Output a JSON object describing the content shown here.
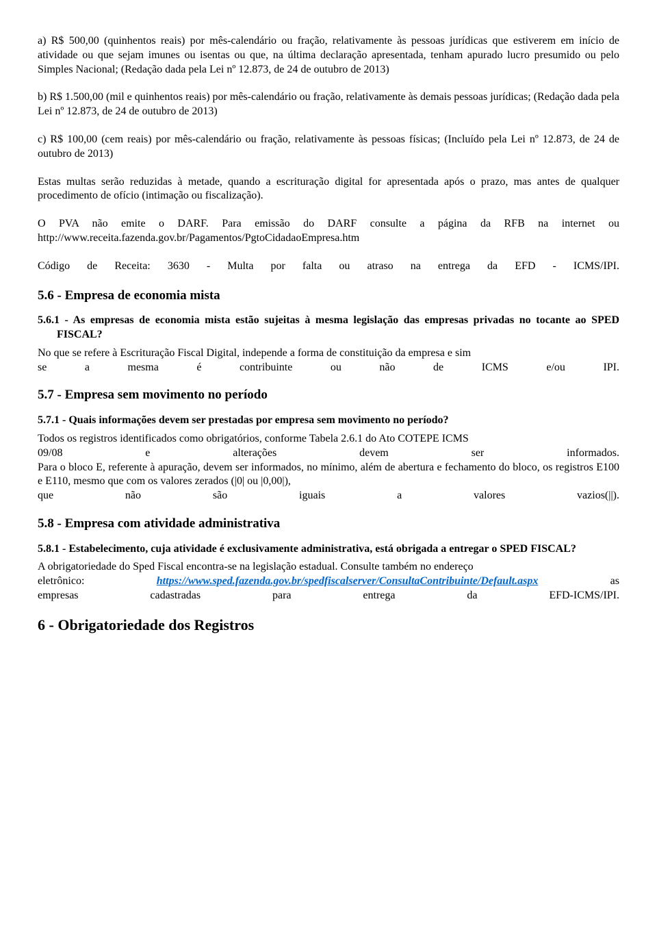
{
  "p1": "a) R$ 500,00 (quinhentos reais) por mês-calendário ou fração, relativamente às pessoas jurídicas que estiverem em início de atividade ou que sejam imunes ou isentas ou que, na última declaração apresentada, tenham apurado lucro presumido ou pelo Simples Nacional; (Redação dada pela Lei nº 12.873, de 24 de outubro de 2013)",
  "p2": "b) R$ 1.500,00 (mil e quinhentos reais) por mês-calendário ou fração, relativamente às demais pessoas jurídicas; (Redação dada pela Lei nº 12.873, de 24 de outubro de 2013)",
  "p3": "c) R$ 100,00 (cem reais) por mês-calendário ou fração, relativamente às pessoas físicas; (Incluído pela Lei nº 12.873, de 24 de outubro de 2013)",
  "p4": "Estas multas serão reduzidas à metade, quando a escrituração digital for apresentada após o prazo, mas antes de qualquer procedimento de ofício (intimação ou fiscalização).",
  "p5": "O PVA não emite o DARF. Para emissão do DARF consulte a página da RFB na internet ou http://www.receita.fazenda.gov.br/Pagamentos/PgtoCidadaoEmpresa.htm",
  "p6": "Código de Receita: 3630 - Multa por falta ou atraso na entrega da EFD - ICMS/IPI.",
  "h56": "5.6 - Empresa de economia mista",
  "q561": "5.6.1 - As empresas de economia mista estão sujeitas à mesma legislação das empresas privadas no tocante ao SPED FISCAL?",
  "a561a": "No que se refere à Escrituração Fiscal Digital, independe a forma de constituição da empresa e sim",
  "a561b_words": [
    "se",
    "a",
    "mesma",
    "é",
    "contribuinte",
    "ou",
    "não",
    "de",
    "ICMS",
    "e/ou",
    "IPI."
  ],
  "h57": "5.7 - Empresa sem movimento no período",
  "q571": "5.7.1 - Quais informações devem ser prestadas por empresa sem movimento no período?",
  "a571a": "Todos os registros identificados como obrigatórios, conforme Tabela 2.6.1 do Ato COTEPE ICMS",
  "a571b_words": [
    "09/08",
    "e",
    "alterações",
    "devem",
    "ser",
    "informados."
  ],
  "a571c": "Para o bloco E, referente à apuração, devem ser informados, no mínimo, além de abertura e fechamento do bloco, os registros E100 e E110, mesmo que com os valores zerados (|0| ou |0,00|),",
  "a571d_words": [
    "que",
    "não",
    "são",
    "iguais",
    "a",
    "valores",
    "vazios(||)."
  ],
  "h58": "5.8 - Empresa com atividade administrativa",
  "q581": "5.8.1 - Estabelecimento, cuja atividade é exclusivamente administrativa, está obrigada a entregar o SPED FISCAL?",
  "a581a": "A obrigatoriedade do Sped  Fiscal encontra-se na legislação estadual. Consulte também no endereço",
  "a581b_pre": "eletrônico: ",
  "a581b_link": "https://www.sped.fazenda.gov.br/spedfiscalserver/ConsultaContribuinte/Default.aspx",
  "a581b_post": " as",
  "a581c_words": [
    "empresas",
    "cadastradas",
    "para",
    "entrega",
    "da",
    "EFD-ICMS/IPI."
  ],
  "h6": "6 - Obrigatoriedade dos Registros"
}
